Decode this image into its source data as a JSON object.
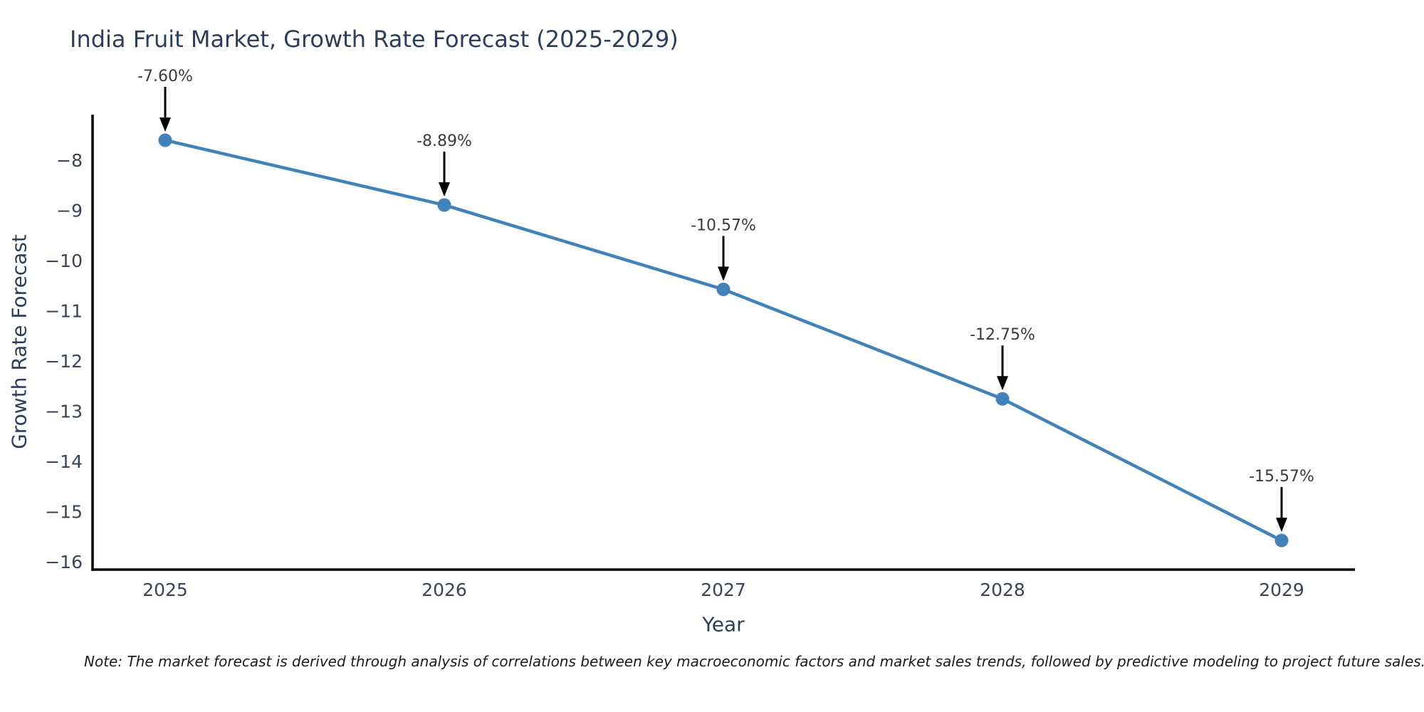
{
  "note": {
    "text": "Note: The market forecast is derived through analysis of correlations between key macroeconomic factors and market sales trends, followed by predictive modeling to project future sales."
  },
  "colors": {
    "title_text": "#2c3e5d",
    "axis_title_text": "#2c3e5d",
    "tick_text": "#3a4457",
    "annotation_text": "#3a3a3a",
    "axis_line": "#000000",
    "series": "#4182ba",
    "arrow": "#000000",
    "background": "#ffffff"
  },
  "chart_data": {
    "type": "line",
    "title": "India Fruit Market, Growth Rate Forecast (2025-2029)",
    "xlabel": "Year",
    "ylabel": "Growth Rate Forecast",
    "categories": [
      "2025",
      "2026",
      "2027",
      "2028",
      "2029"
    ],
    "values": [
      -7.6,
      -8.89,
      -10.57,
      -12.75,
      -15.57
    ],
    "point_labels": [
      "-7.60%",
      "-8.89%",
      "-10.57%",
      "-12.75%",
      "-15.57%"
    ],
    "yticks": [
      -8,
      -9,
      -10,
      -11,
      -12,
      -13,
      -14,
      -15,
      -16
    ],
    "ylim": [
      -16.15,
      -7.09
    ],
    "grid": false,
    "legend": false,
    "line_color": "#4182ba",
    "marker_color": "#4182ba",
    "annotation_style": "black down-arrow from label to data point"
  }
}
